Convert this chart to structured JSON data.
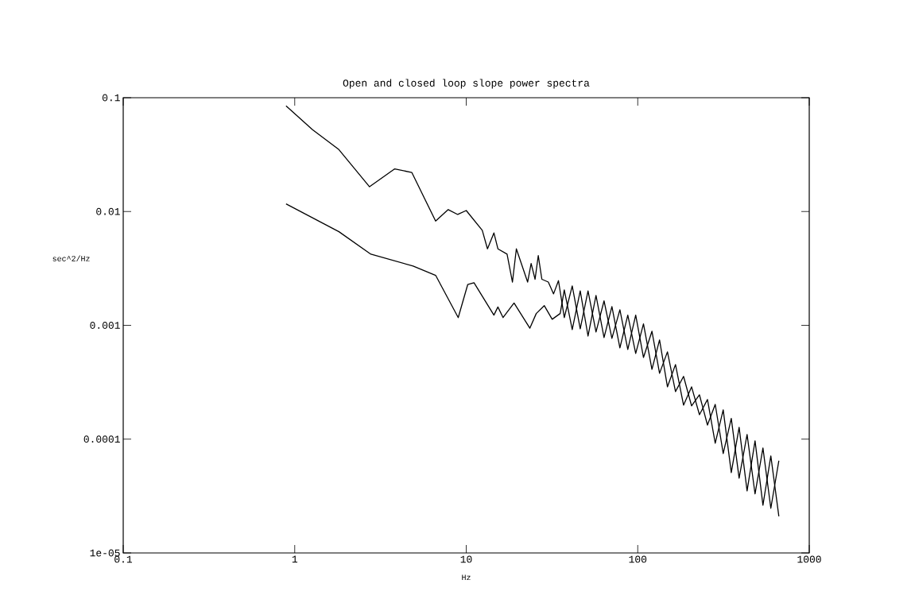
{
  "chart_data": {
    "type": "line",
    "title": "Open and closed loop slope power spectra",
    "xlabel": "Hz",
    "ylabel": "sec^2/Hz",
    "log": "xy",
    "grid": false,
    "xlim": [
      0.1,
      1000
    ],
    "ylim": [
      1e-05,
      0.1
    ],
    "xticks": [
      0.1,
      1,
      10,
      100,
      1000
    ],
    "yticks": [
      {
        "value": 1e-05,
        "label": "1e-05"
      },
      0.0001,
      0.001,
      0.01,
      0.1
    ],
    "series": [
      {
        "color": "#000000",
        "x": [
          0.89,
          1.27,
          1.81,
          2.73,
          3.83,
          4.82,
          6.63,
          7.85,
          8.92,
          10.0,
          12.4,
          13.3,
          14.5,
          15.3,
          17.3,
          18.6,
          19.6,
          22.8,
          23.9,
          25.2,
          26.3,
          27.6,
          30.1,
          32.3,
          34.5,
          37.3,
          41.5,
          46.2,
          51.3,
          57.1,
          63.6,
          70.7,
          78.7,
          87.5,
          97.3,
          108,
          121,
          134,
          149,
          166,
          185,
          206,
          229,
          255,
          283,
          315,
          351,
          390,
          434,
          483,
          537,
          597,
          665
        ],
        "values": [
          0.0847,
          0.0524,
          0.035,
          0.0165,
          0.0237,
          0.022,
          0.00824,
          0.0104,
          0.00942,
          0.0102,
          0.00684,
          0.0047,
          0.00649,
          0.0047,
          0.00422,
          0.0024,
          0.0047,
          0.0024,
          0.0035,
          0.00254,
          0.0041,
          0.00254,
          0.0024,
          0.00189,
          0.00247,
          0.00117,
          0.00222,
          0.000931,
          0.00201,
          0.000873,
          0.00164,
          0.000768,
          0.00137,
          0.000614,
          0.00123,
          0.000522,
          0.000887,
          0.000379,
          0.000585,
          0.000262,
          0.000356,
          0.000196,
          0.000245,
          0.000133,
          0.000202,
          7.48e-05,
          0.000152,
          4.54e-05,
          0.00011,
          3.3e-05,
          8.37e-05,
          2.47e-05,
          6.47e-05
        ]
      },
      {
        "color": "#000000",
        "x": [
          0.89,
          1.81,
          2.78,
          4.9,
          6.63,
          8.98,
          10.2,
          11.1,
          14.5,
          15.3,
          16.4,
          19.0,
          23.5,
          25.6,
          28.5,
          31.7,
          35.3,
          37.3,
          41.5,
          46.2,
          51.3,
          57.1,
          63.6,
          70.7,
          78.7,
          87.5,
          97.3,
          108,
          121,
          134,
          149,
          166,
          185,
          206,
          229,
          255,
          283,
          315,
          351,
          390,
          434,
          483,
          537,
          597,
          665
        ],
        "values": [
          0.01167,
          0.00665,
          0.00422,
          0.00332,
          0.00275,
          0.00117,
          0.00228,
          0.00237,
          0.00123,
          0.00145,
          0.00117,
          0.00157,
          0.000944,
          0.00127,
          0.00149,
          0.00113,
          0.00127,
          0.00205,
          0.000916,
          0.00201,
          0.000805,
          0.00183,
          0.00078,
          0.00146,
          0.000634,
          0.00123,
          0.000566,
          0.00103,
          0.00041,
          0.000744,
          0.000288,
          0.000452,
          0.000199,
          0.000288,
          0.000164,
          0.000223,
          9.21e-05,
          0.000181,
          5.08e-05,
          0.000127,
          3.51e-05,
          9.67e-05,
          2.63e-05,
          7.13e-05,
          2.1e-05
        ]
      }
    ]
  }
}
